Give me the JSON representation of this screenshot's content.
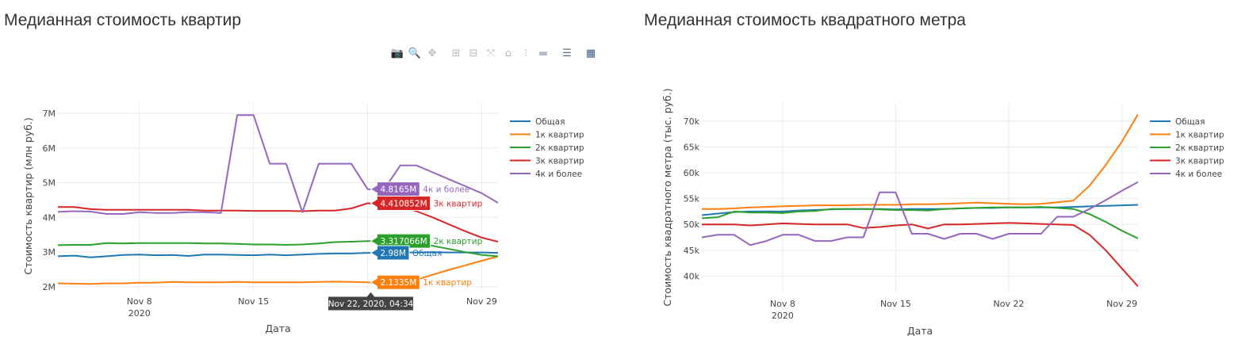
{
  "left_panel": {
    "title": "Медианная стоимость квартир",
    "modebar": [
      {
        "icon": "camera-icon",
        "glyph": "📷"
      },
      {
        "icon": "zoom-icon",
        "glyph": "🔍"
      },
      {
        "icon": "pan-icon",
        "glyph": "✥"
      },
      {
        "icon": "zoom-in-icon",
        "glyph": "⊞"
      },
      {
        "icon": "zoom-out-icon",
        "glyph": "⊟"
      },
      {
        "icon": "autoscale-icon",
        "glyph": "⤧"
      },
      {
        "icon": "reset-axes-icon",
        "glyph": "⌂"
      },
      {
        "icon": "spike-lines-icon",
        "glyph": "⁝"
      },
      {
        "icon": "hover-closest-icon",
        "glyph": "▬"
      },
      {
        "icon": "hover-compare-icon",
        "glyph": "☰"
      },
      {
        "icon": "plotly-logo-icon",
        "glyph": "▦"
      }
    ]
  },
  "right_panel": {
    "title": "Медианная стоимость квадратного метра"
  },
  "colors": {
    "Общая": "#1f77b4",
    "1к квартир": "#ff7f0e",
    "2к квартир": "#2ca02c",
    "3к квартир": "#d62728",
    "4к и более": "#9467bd"
  },
  "chart_data": [
    {
      "type": "line",
      "x_start": "2020-11-03",
      "xlim": [
        "2020-11-03",
        "2020-11-30"
      ],
      "x_ticks": [
        {
          "date": "2020-11-08",
          "label": "Nov 8",
          "sub": "2020"
        },
        {
          "date": "2020-11-15",
          "label": "Nov 15",
          "sub": ""
        },
        {
          "date": "2020-11-22",
          "label": "Nov 22",
          "sub": ""
        },
        {
          "date": "2020-11-29",
          "label": "Nov 29",
          "sub": ""
        }
      ],
      "ylim": [
        1.93,
        7.3
      ],
      "y_ticks": [
        2,
        3,
        4,
        5,
        6,
        7
      ],
      "y_tick_labels": [
        "2M",
        "3M",
        "4M",
        "5M",
        "6M",
        "7M"
      ],
      "xlabel": "Дата",
      "ylabel": "Стоимость квартир (млн руб.)",
      "legend_position": "top-right",
      "x": [
        "2020-11-03",
        "2020-11-04",
        "2020-11-05",
        "2020-11-06",
        "2020-11-07",
        "2020-11-08",
        "2020-11-09",
        "2020-11-10",
        "2020-11-11",
        "2020-11-12",
        "2020-11-13",
        "2020-11-14",
        "2020-11-15",
        "2020-11-16",
        "2020-11-17",
        "2020-11-18",
        "2020-11-19",
        "2020-11-20",
        "2020-11-21",
        "2020-11-22",
        "2020-11-23",
        "2020-11-24",
        "2020-11-25",
        "2020-11-26",
        "2020-11-27",
        "2020-11-28",
        "2020-11-29",
        "2020-11-30"
      ],
      "series": [
        {
          "name": "Общая",
          "values": [
            2.88,
            2.9,
            2.85,
            2.88,
            2.92,
            2.93,
            2.91,
            2.92,
            2.89,
            2.93,
            2.93,
            2.92,
            2.91,
            2.93,
            2.91,
            2.93,
            2.95,
            2.96,
            2.96,
            2.98,
            2.98,
            2.99,
            2.99,
            3.0,
            2.99,
            2.99,
            2.99,
            2.98
          ]
        },
        {
          "name": "1к квартир",
          "values": [
            2.1,
            2.09,
            2.08,
            2.1,
            2.1,
            2.12,
            2.12,
            2.14,
            2.13,
            2.13,
            2.13,
            2.14,
            2.13,
            2.13,
            2.13,
            2.13,
            2.14,
            2.15,
            2.14,
            2.13,
            2.1,
            2.12,
            2.2,
            2.35,
            2.49,
            2.62,
            2.75,
            2.88
          ]
        },
        {
          "name": "2к квартир",
          "values": [
            3.2,
            3.21,
            3.21,
            3.26,
            3.25,
            3.26,
            3.26,
            3.26,
            3.26,
            3.25,
            3.25,
            3.24,
            3.22,
            3.22,
            3.21,
            3.22,
            3.25,
            3.29,
            3.3,
            3.32,
            3.33,
            3.3,
            3.26,
            3.18,
            3.09,
            3.0,
            2.92,
            2.88
          ]
        },
        {
          "name": "3к квартир",
          "values": [
            4.3,
            4.3,
            4.24,
            4.22,
            4.22,
            4.22,
            4.22,
            4.22,
            4.22,
            4.2,
            4.2,
            4.2,
            4.19,
            4.19,
            4.19,
            4.18,
            4.2,
            4.2,
            4.26,
            4.41,
            4.39,
            4.32,
            4.18,
            4.0,
            3.8,
            3.6,
            3.42,
            3.3
          ]
        },
        {
          "name": "4к и более",
          "values": [
            4.16,
            4.18,
            4.17,
            4.1,
            4.1,
            4.15,
            4.13,
            4.13,
            4.15,
            4.15,
            4.13,
            6.95,
            6.95,
            5.55,
            5.55,
            4.15,
            5.55,
            5.55,
            5.55,
            4.8165,
            4.8,
            5.5,
            5.5,
            5.3,
            5.1,
            4.9,
            4.7,
            4.42
          ]
        }
      ],
      "hover": {
        "x_label": "Nov 22, 2020, 04:34",
        "labels": [
          {
            "series": "4к и более",
            "value": "4.8165M"
          },
          {
            "series": "3к квартир",
            "value": "4.410852M"
          },
          {
            "series": "2к квартир",
            "value": "3.317066M"
          },
          {
            "series": "Общая",
            "value": "2.98M"
          },
          {
            "series": "1к квартир",
            "value": "2.1335M"
          }
        ]
      }
    },
    {
      "type": "line",
      "x_start": "2020-11-03",
      "xlim": [
        "2020-11-03",
        "2020-11-30"
      ],
      "x_ticks": [
        {
          "date": "2020-11-08",
          "label": "Nov 8",
          "sub": "2020"
        },
        {
          "date": "2020-11-15",
          "label": "Nov 15",
          "sub": ""
        },
        {
          "date": "2020-11-22",
          "label": "Nov 22",
          "sub": ""
        },
        {
          "date": "2020-11-29",
          "label": "Nov 29",
          "sub": ""
        }
      ],
      "ylim": [
        37000,
        73500
      ],
      "y_ticks": [
        40000,
        45000,
        50000,
        55000,
        60000,
        65000,
        70000
      ],
      "y_tick_labels": [
        "40k",
        "45k",
        "50k",
        "55k",
        "60k",
        "65k",
        "70k"
      ],
      "xlabel": "Дата",
      "ylabel": "Стоимость квадратного метра (тыс. руб.)",
      "legend_position": "top-right",
      "x": [
        "2020-11-03",
        "2020-11-04",
        "2020-11-05",
        "2020-11-06",
        "2020-11-07",
        "2020-11-08",
        "2020-11-09",
        "2020-11-10",
        "2020-11-11",
        "2020-11-12",
        "2020-11-13",
        "2020-11-14",
        "2020-11-15",
        "2020-11-16",
        "2020-11-17",
        "2020-11-18",
        "2020-11-19",
        "2020-11-20",
        "2020-11-21",
        "2020-11-22",
        "2020-11-23",
        "2020-11-24",
        "2020-11-25",
        "2020-11-26",
        "2020-11-27",
        "2020-11-28",
        "2020-11-29",
        "2020-11-30"
      ],
      "series": [
        {
          "name": "Общая",
          "values": [
            51800,
            52100,
            52400,
            52500,
            52500,
            52500,
            52700,
            52800,
            52900,
            53000,
            53000,
            53000,
            52900,
            53000,
            53000,
            53000,
            53100,
            53200,
            53200,
            53300,
            53300,
            53300,
            53300,
            53400,
            53500,
            53600,
            53700,
            53800
          ]
        },
        {
          "name": "1к квартир",
          "values": [
            53000,
            53000,
            53100,
            53300,
            53400,
            53500,
            53600,
            53700,
            53700,
            53700,
            53800,
            53800,
            53800,
            53900,
            53900,
            54000,
            54100,
            54200,
            54100,
            54000,
            53900,
            54000,
            54300,
            54600,
            57500,
            61500,
            66000,
            71300
          ]
        },
        {
          "name": "2к квартир",
          "values": [
            51200,
            51400,
            52500,
            52300,
            52300,
            52200,
            52500,
            52600,
            53000,
            53000,
            53000,
            52900,
            52800,
            52800,
            52700,
            53000,
            53100,
            53200,
            53300,
            53300,
            53300,
            53400,
            53200,
            53000,
            52000,
            50500,
            48800,
            47300
          ]
        },
        {
          "name": "3к квартир",
          "values": [
            50000,
            50000,
            50000,
            49800,
            50000,
            50200,
            50100,
            50000,
            50000,
            50000,
            49300,
            49500,
            49800,
            50000,
            49200,
            50000,
            50000,
            50100,
            50200,
            50300,
            50200,
            50100,
            50000,
            49900,
            48000,
            45000,
            41500,
            38000
          ]
        },
        {
          "name": "4к и более",
          "values": [
            47500,
            48000,
            48000,
            46000,
            46800,
            48000,
            48000,
            46800,
            46800,
            47500,
            47500,
            56200,
            56200,
            48200,
            48200,
            47200,
            48200,
            48200,
            47200,
            48200,
            48200,
            48200,
            51500,
            51500,
            53000,
            54700,
            56500,
            58200
          ]
        }
      ]
    }
  ]
}
